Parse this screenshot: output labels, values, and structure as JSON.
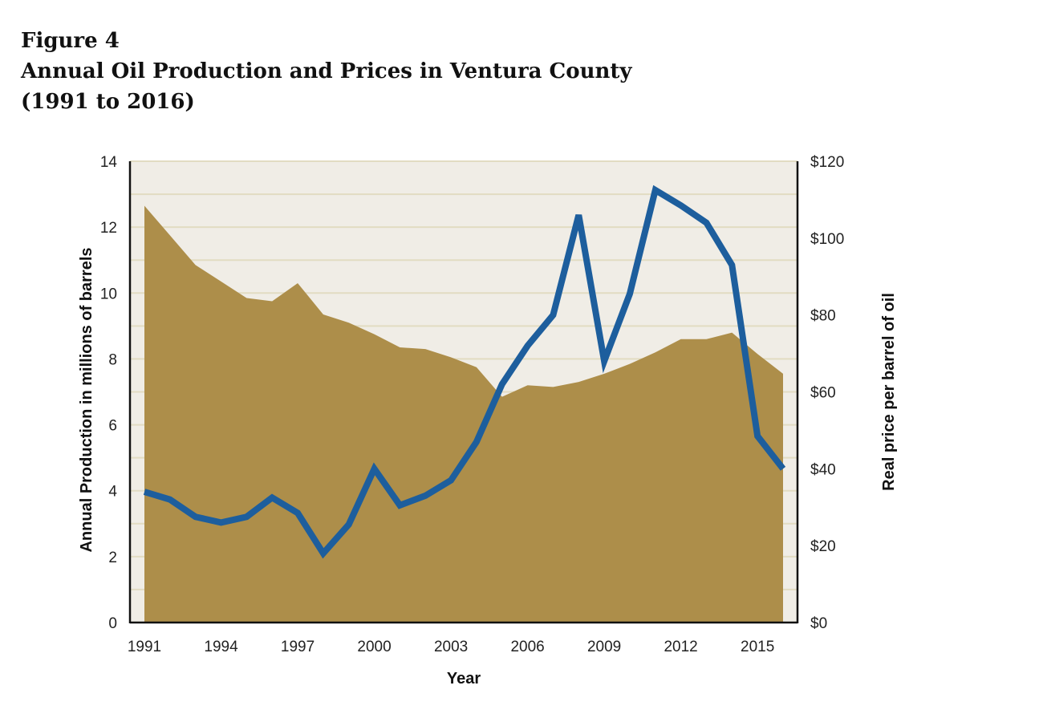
{
  "figure": {
    "label": "Figure 4",
    "title": "Annual Oil Production and Prices in Ventura County",
    "subtitle": "(1991 to 2016)"
  },
  "chart_data": {
    "type": "area",
    "x": [
      1991,
      1992,
      1993,
      1994,
      1995,
      1996,
      1997,
      1998,
      1999,
      2000,
      2001,
      2002,
      2003,
      2004,
      2005,
      2006,
      2007,
      2008,
      2009,
      2010,
      2011,
      2012,
      2013,
      2014,
      2015,
      2016
    ],
    "xlabel": "Year",
    "xticks": [
      "1991",
      "1994",
      "1997",
      "2000",
      "2003",
      "2006",
      "2009",
      "2012",
      "2015"
    ],
    "xlim": [
      1991,
      2016
    ],
    "series": [
      {
        "type": "area",
        "axis": "left",
        "color": "#ad8e4a",
        "values": [
          12.65,
          11.75,
          10.85,
          10.35,
          9.85,
          9.75,
          10.3,
          9.35,
          9.1,
          8.75,
          8.35,
          8.3,
          8.05,
          7.75,
          6.85,
          7.2,
          7.15,
          7.3,
          7.55,
          7.85,
          8.2,
          8.6,
          8.6,
          8.8,
          8.15,
          7.55
        ]
      },
      {
        "type": "line",
        "axis": "right",
        "color": "#1d5e9d",
        "values": [
          34,
          32,
          27.5,
          26,
          27.5,
          32.5,
          28.5,
          18,
          25.5,
          40,
          30.5,
          33,
          37,
          47,
          62,
          72,
          80,
          106,
          68,
          85.5,
          112.5,
          108.5,
          104,
          93,
          48.5,
          40
        ]
      }
    ],
    "y_left": {
      "label": "Annual Production in millions of barrels",
      "lim": [
        0,
        14
      ],
      "ticks": [
        "0",
        "2",
        "4",
        "6",
        "8",
        "10",
        "12",
        "14"
      ]
    },
    "y_right": {
      "label": "Real price per barrel of oil",
      "lim": [
        0,
        120
      ],
      "ticks": [
        "$0",
        "$20",
        "$40",
        "$60",
        "$80",
        "$100",
        "$120"
      ]
    },
    "grid": true,
    "plot_background": "#f0ede6",
    "grid_color": "#e2dcc2"
  }
}
